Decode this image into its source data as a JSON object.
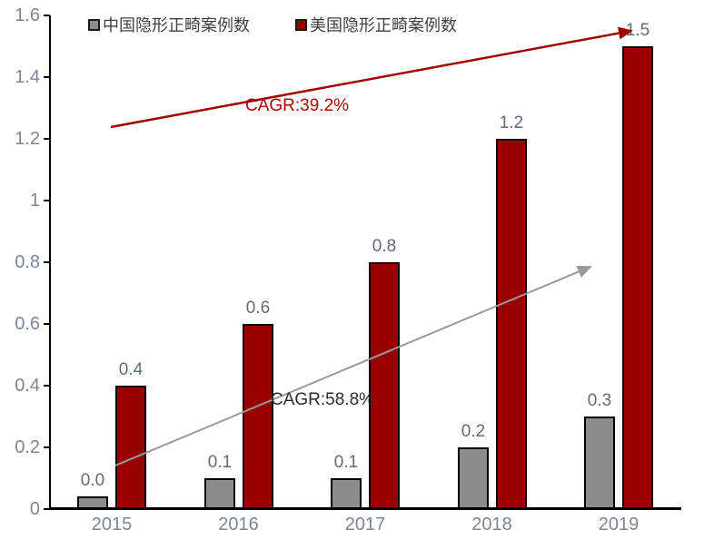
{
  "chart_data": {
    "type": "bar",
    "title": "",
    "categories": [
      "2015",
      "2016",
      "2017",
      "2018",
      "2019"
    ],
    "series": [
      {
        "name": "中国隐形正畸案例数",
        "values": [
          0.0,
          0.1,
          0.1,
          0.2,
          0.3
        ],
        "labels": [
          "0.0",
          "0.1",
          "0.1",
          "0.2",
          "0.3"
        ],
        "color": "#8C8C8C"
      },
      {
        "name": "美国隐形正畸案例数",
        "values": [
          0.4,
          0.6,
          0.8,
          1.2,
          1.5
        ],
        "labels": [
          "0.4",
          "0.6",
          "0.8",
          "1.2",
          "1.5"
        ],
        "color": "#990000"
      }
    ],
    "xlabel": "",
    "ylabel": "",
    "ylim": [
      0,
      1.6
    ],
    "yticks": [
      "0",
      "0.2",
      "0.4",
      "0.6",
      "0.8",
      "1",
      "1.2",
      "1.4",
      "1.6"
    ],
    "grid": false,
    "legend_position": "top",
    "annotations": [
      {
        "text": "CAGR:39.2%",
        "color": "#B00000",
        "applies_to": "美国隐形正畸案例数"
      },
      {
        "text": "CAGR:58.8%",
        "color": "#2b2b2b",
        "applies_to": "中国隐形正畸案例数"
      }
    ]
  },
  "colors": {
    "china_bar": "#8C8C8C",
    "us_bar": "#990000",
    "bar_border": "#000000",
    "axis": "#000000",
    "axis_label": "#7b8696",
    "data_label": "#5f6b7a",
    "red_arrow": "#A00000",
    "gray_arrow": "#999999"
  }
}
